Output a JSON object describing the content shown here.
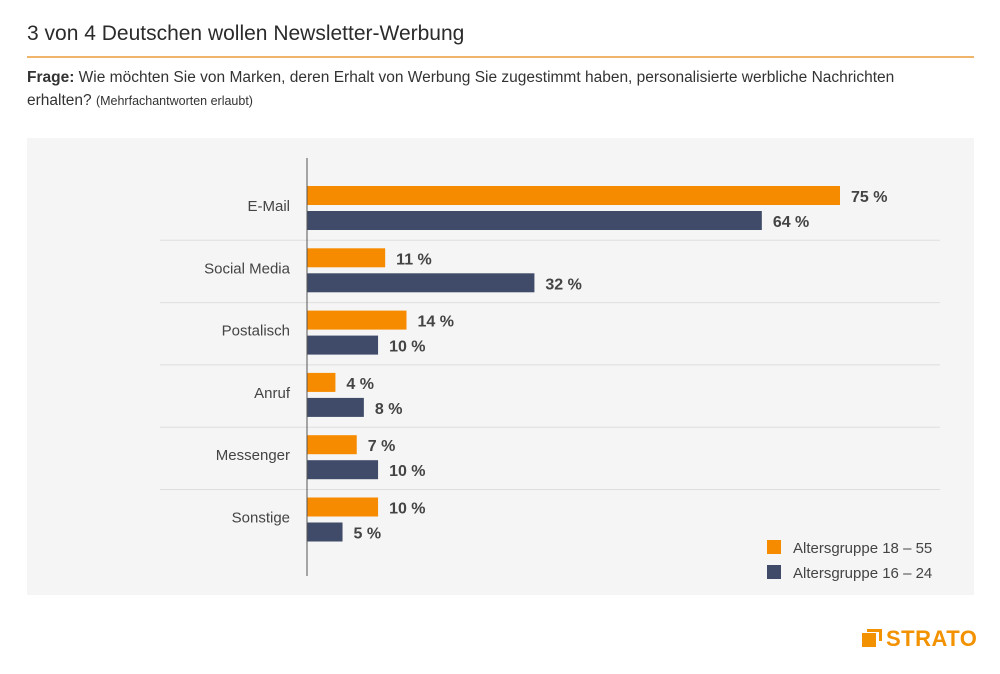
{
  "header": {
    "title": "3 von 4 Deutschen wollen Newsletter-Werbung",
    "question_label": "Frage:",
    "question_text": " Wie möchten Sie von Marken, deren Erhalt von Werbung Sie zugestimmt haben, personalisierte werbliche Nachrichten erhalten? ",
    "question_note": "(Mehrfachantworten erlaubt)"
  },
  "brand": {
    "name": "STRATO",
    "color": "#f39200"
  },
  "chart_data": {
    "type": "bar",
    "orientation": "horizontal",
    "title": "3 von 4 Deutschen wollen Newsletter-Werbung",
    "xlabel": "",
    "ylabel": "",
    "xlim": [
      0,
      75
    ],
    "unit": "%",
    "categories": [
      "E-Mail",
      "Social Media",
      "Postalisch",
      "Anruf",
      "Messenger",
      "Sonstige"
    ],
    "series": [
      {
        "name": "Altersgruppe 18 – 55",
        "color": "#f78b00",
        "values": [
          75,
          11,
          14,
          4,
          7,
          10
        ]
      },
      {
        "name": "Altersgruppe 16 – 24",
        "color": "#3f4b68",
        "values": [
          64,
          32,
          10,
          8,
          10,
          5
        ]
      }
    ],
    "data_labels": [
      [
        "75 %",
        "11 %",
        "14 %",
        "4 %",
        "7 %",
        "10 %"
      ],
      [
        "64 %",
        "32 %",
        "10 %",
        "8 %",
        "10 %",
        "5 %"
      ]
    ],
    "legend_position": "bottom-right",
    "grid": false
  }
}
